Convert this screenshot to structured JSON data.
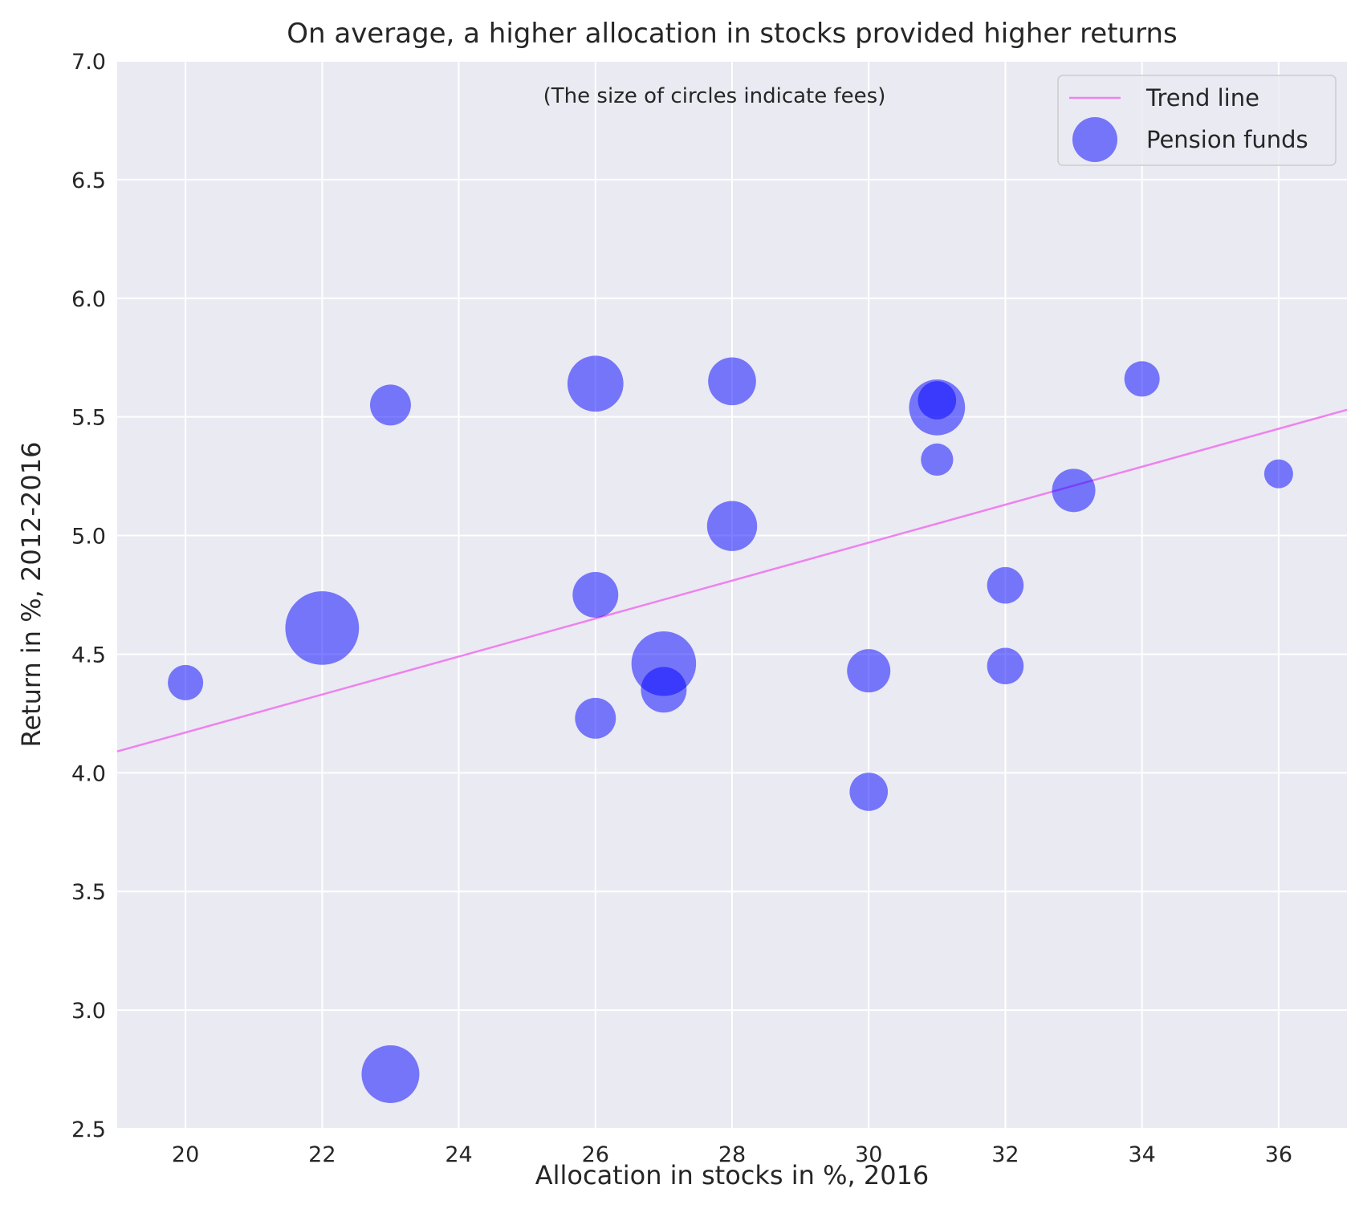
{
  "chart_data": {
    "type": "scatter",
    "title": "On average, a higher allocation in stocks provided higher returns",
    "annotation": "(The size of circles indicate fees)",
    "xlabel": "Allocation in stocks in %, 2016",
    "ylabel": "Return in %, 2012-2016",
    "xlim": [
      19,
      37
    ],
    "ylim": [
      2.5,
      7.0
    ],
    "xticks": [
      20,
      22,
      24,
      26,
      28,
      30,
      32,
      34,
      36
    ],
    "xtick_labels": [
      "20",
      "22",
      "24",
      "26",
      "28",
      "30",
      "32",
      "34",
      "36"
    ],
    "yticks": [
      2.5,
      3.0,
      3.5,
      4.0,
      4.5,
      5.0,
      5.5,
      6.0,
      6.5,
      7.0
    ],
    "ytick_labels": [
      "2.5",
      "3.0",
      "3.5",
      "4.0",
      "4.5",
      "5.0",
      "5.5",
      "6.0",
      "6.5",
      "7.0"
    ],
    "grid": true,
    "legend_position": "top-right",
    "background_color": "#eaeaf2",
    "series": [
      {
        "name": "Trend line",
        "kind": "line",
        "color": "#ee82ee",
        "x": [
          19,
          37
        ],
        "y": [
          4.09,
          5.53
        ]
      },
      {
        "name": "Pension funds",
        "kind": "bubble",
        "color": "#0000ff",
        "opacity": 0.5,
        "points": [
          {
            "x": 20,
            "y": 4.38,
            "fee": 0.3
          },
          {
            "x": 22,
            "y": 4.61,
            "fee": 1.3
          },
          {
            "x": 23,
            "y": 5.55,
            "fee": 0.4
          },
          {
            "x": 23,
            "y": 2.73,
            "fee": 0.8
          },
          {
            "x": 26,
            "y": 5.64,
            "fee": 0.75
          },
          {
            "x": 26,
            "y": 4.75,
            "fee": 0.5
          },
          {
            "x": 26,
            "y": 4.23,
            "fee": 0.4
          },
          {
            "x": 27,
            "y": 4.46,
            "fee": 1.0
          },
          {
            "x": 27,
            "y": 4.35,
            "fee": 0.5
          },
          {
            "x": 28,
            "y": 5.65,
            "fee": 0.55
          },
          {
            "x": 28,
            "y": 5.04,
            "fee": 0.6
          },
          {
            "x": 30,
            "y": 4.43,
            "fee": 0.45
          },
          {
            "x": 30,
            "y": 3.92,
            "fee": 0.35
          },
          {
            "x": 31,
            "y": 5.54,
            "fee": 0.75
          },
          {
            "x": 31,
            "y": 5.57,
            "fee": 0.35
          },
          {
            "x": 31,
            "y": 5.32,
            "fee": 0.25
          },
          {
            "x": 32,
            "y": 4.79,
            "fee": 0.32
          },
          {
            "x": 32,
            "y": 4.45,
            "fee": 0.32
          },
          {
            "x": 33,
            "y": 5.19,
            "fee": 0.45
          },
          {
            "x": 34,
            "y": 5.66,
            "fee": 0.3
          },
          {
            "x": 36,
            "y": 5.26,
            "fee": 0.2
          }
        ]
      }
    ]
  }
}
